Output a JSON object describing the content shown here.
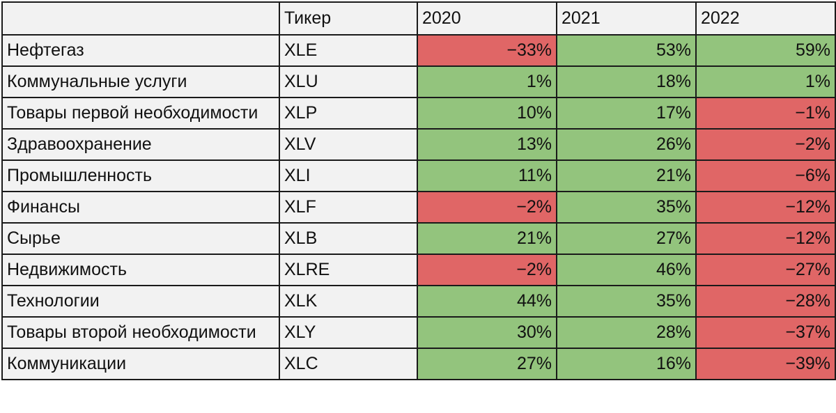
{
  "colors": {
    "positive": "#93c47d",
    "negative": "#e06666",
    "header_bg": "#f2f2f2",
    "border": "#1a1a1a"
  },
  "header": {
    "sector": "",
    "ticker": "Тикер",
    "years": [
      "2020",
      "2021",
      "2022"
    ]
  },
  "rows": [
    {
      "sector": "Нефтегаз",
      "ticker": "XLE",
      "values": [
        "−33%",
        "53%",
        "59%"
      ]
    },
    {
      "sector": "Коммунальные услуги",
      "ticker": "XLU",
      "values": [
        "1%",
        "18%",
        "1%"
      ]
    },
    {
      "sector": "Товары первой необходимости",
      "ticker": "XLP",
      "values": [
        "10%",
        "17%",
        "−1%"
      ]
    },
    {
      "sector": "Здравоохранение",
      "ticker": "XLV",
      "values": [
        "13%",
        "26%",
        "−2%"
      ]
    },
    {
      "sector": "Промышленность",
      "ticker": "XLI",
      "values": [
        "11%",
        "21%",
        "−6%"
      ]
    },
    {
      "sector": "Финансы",
      "ticker": "XLF",
      "values": [
        "−2%",
        "35%",
        "−12%"
      ]
    },
    {
      "sector": "Сырье",
      "ticker": "XLB",
      "values": [
        "21%",
        "27%",
        "−12%"
      ]
    },
    {
      "sector": "Недвижимость",
      "ticker": "XLRE",
      "values": [
        "−2%",
        "46%",
        "−27%"
      ]
    },
    {
      "sector": "Технологии",
      "ticker": "XLK",
      "values": [
        "44%",
        "35%",
        "−28%"
      ]
    },
    {
      "sector": "Товары второй необходимости",
      "ticker": "XLY",
      "values": [
        "30%",
        "28%",
        "−37%"
      ]
    },
    {
      "sector": "Коммуникации",
      "ticker": "XLC",
      "values": [
        "27%",
        "16%",
        "−39%"
      ]
    }
  ]
}
